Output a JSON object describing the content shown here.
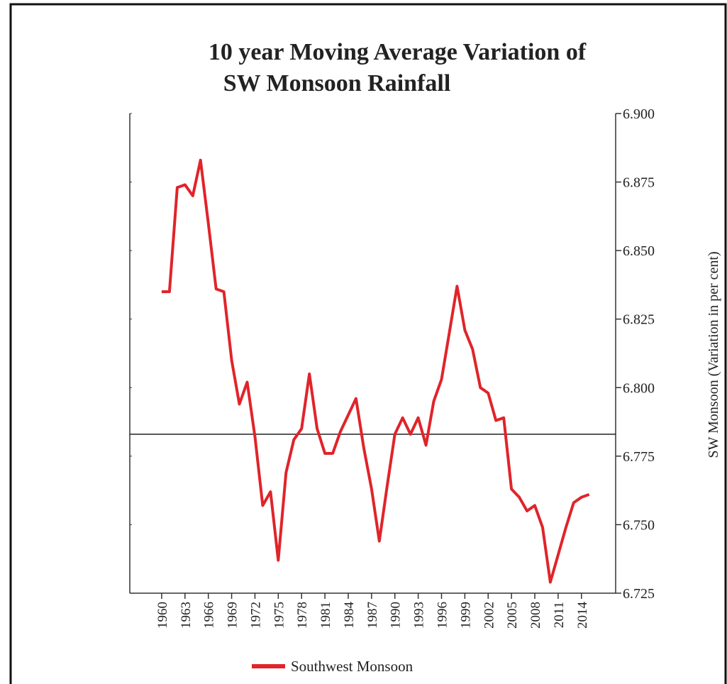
{
  "chart_data": {
    "type": "line",
    "title": [
      "10 year Moving Average Variation of",
      "SW Monsoon Rainfall"
    ],
    "y_label": "SW Monsoon (Variation in per cent)",
    "x": [
      1960,
      1961,
      1962,
      1963,
      1964,
      1965,
      1966,
      1967,
      1968,
      1969,
      1970,
      1971,
      1972,
      1973,
      1974,
      1975,
      1976,
      1977,
      1978,
      1979,
      1980,
      1981,
      1982,
      1983,
      1984,
      1985,
      1986,
      1987,
      1988,
      1989,
      1990,
      1991,
      1992,
      1993,
      1994,
      1995,
      1996,
      1997,
      1998,
      1999,
      2000,
      2001,
      2002,
      2003,
      2004,
      2005,
      2006,
      2007,
      2008,
      2009,
      2010,
      2011,
      2012,
      2013,
      2014,
      2015
    ],
    "series": [
      {
        "name": "Southwest Monsoon",
        "color": "#e0242a",
        "values": [
          6.835,
          6.835,
          6.873,
          6.874,
          6.87,
          6.883,
          6.86,
          6.836,
          6.835,
          6.81,
          6.794,
          6.802,
          6.782,
          6.757,
          6.762,
          6.737,
          6.769,
          6.781,
          6.785,
          6.805,
          6.785,
          6.776,
          6.776,
          6.784,
          6.79,
          6.796,
          6.778,
          6.763,
          6.744,
          6.764,
          6.783,
          6.789,
          6.783,
          6.789,
          6.779,
          6.795,
          6.803,
          6.82,
          6.837,
          6.821,
          6.814,
          6.8,
          6.798,
          6.788,
          6.789,
          6.763,
          6.76,
          6.755,
          6.757,
          6.749,
          6.729,
          6.739,
          6.749,
          6.758,
          6.76,
          6.761
        ]
      }
    ],
    "reference_line": 6.783,
    "xlim": [
      1955.9,
      2018.4
    ],
    "xticks": [
      1960,
      1963,
      1966,
      1969,
      1972,
      1975,
      1978,
      1981,
      1984,
      1987,
      1990,
      1993,
      1996,
      1999,
      2002,
      2005,
      2008,
      2011,
      2014
    ],
    "ylim": [
      6.725,
      6.9
    ],
    "yticks": [
      {
        "value": 6.9,
        "label": "6.900"
      },
      6.875,
      {
        "value": 6.85,
        "label": "6.850"
      },
      6.825,
      {
        "value": 6.8,
        "label": "6.800"
      },
      6.775,
      {
        "value": 6.75,
        "label": "6.750"
      },
      6.725
    ],
    "y_axis_side": "right"
  }
}
